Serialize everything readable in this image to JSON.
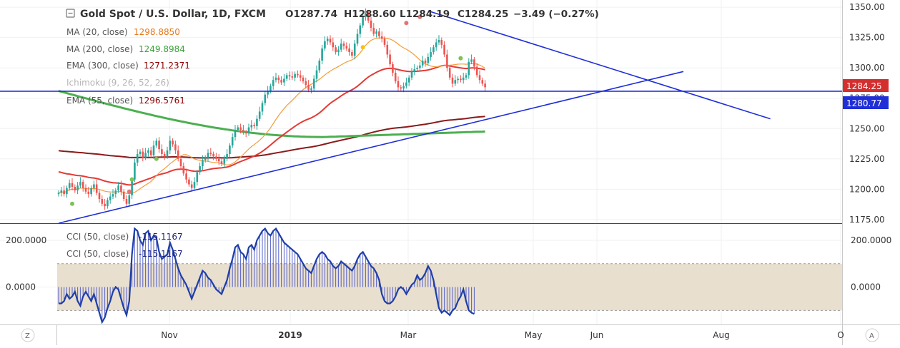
{
  "header": {
    "title": "Gold Spot / U.S. Dollar, 1D, FXCM",
    "open": "O1287.74",
    "high": "H1288.60",
    "low": "L1284.19",
    "close": "C1284.25",
    "change": "−3.49 (−0.27%)"
  },
  "legend": {
    "items": [
      {
        "label": "MA (20, close)",
        "value": "1298.8850",
        "color": "#e8791a"
      },
      {
        "label": "MA (200, close)",
        "value": "1249.8984",
        "color": "#3aa33a"
      },
      {
        "label": "EMA (300, close)",
        "value": "1271.2371",
        "color": "#8b0000"
      },
      {
        "label": "Ichimoku (9, 26, 52, 26)",
        "value": "",
        "color": "#b0b0b0"
      },
      {
        "label": "EMA (55, close)",
        "value": "1296.5761",
        "color": "#8b0000"
      }
    ],
    "cci_items": [
      {
        "label": "CCI (50, close)",
        "value": "-115.1167",
        "color": "#1a237e"
      },
      {
        "label": "CCI (50, close)",
        "value": "-115.1167",
        "color": "#1a237e"
      }
    ]
  },
  "price_labels": {
    "current": "1284.25",
    "line": "1280.77"
  },
  "bottom_bar": {
    "left_button": "Z",
    "right_button": "A"
  },
  "colors": {
    "up": "#26a69a",
    "down": "#ef5350",
    "trendline": "#1f2ed6",
    "ma20": "#f39c3a",
    "ma200": "#4caf50",
    "ema55": "#e53935",
    "ema300": "#8b1a1a",
    "cci_line": "#1e3fa8",
    "cci_band": "#e9dfcf",
    "current_price_bg": "#d32f2f",
    "line_price_bg": "#1f2ed6"
  },
  "chart_data": [
    {
      "type": "candlestick",
      "title": "Gold Spot / U.S. Dollar, 1D, FXCM",
      "xlabel": "",
      "ylabel": "",
      "x_ticks": [
        "Nov",
        "2019",
        "Mar",
        "May",
        "Jun",
        "Aug",
        "O"
      ],
      "y_ticks": [
        1175,
        1200,
        1225,
        1250,
        1275,
        1300,
        1325,
        1350
      ],
      "ylim": [
        1172,
        1353
      ],
      "series_close": [
        1197,
        1199,
        1196,
        1201,
        1205,
        1202,
        1199,
        1203,
        1206,
        1201,
        1198,
        1196,
        1201,
        1204,
        1197,
        1192,
        1188,
        1186,
        1191,
        1194,
        1196,
        1199,
        1203,
        1198,
        1192,
        1188,
        1195,
        1208,
        1222,
        1229,
        1231,
        1226,
        1230,
        1232,
        1228,
        1236,
        1240,
        1233,
        1229,
        1227,
        1232,
        1240,
        1237,
        1232,
        1225,
        1219,
        1213,
        1208,
        1204,
        1201,
        1206,
        1214,
        1219,
        1224,
        1226,
        1230,
        1229,
        1227,
        1225,
        1223,
        1221,
        1225,
        1229,
        1236,
        1243,
        1249,
        1251,
        1249,
        1247,
        1246,
        1251,
        1253,
        1252,
        1258,
        1264,
        1271,
        1278,
        1281,
        1285,
        1290,
        1292,
        1290,
        1288,
        1291,
        1294,
        1293,
        1292,
        1295,
        1294,
        1292,
        1289,
        1286,
        1282,
        1283,
        1291,
        1298,
        1306,
        1316,
        1322,
        1324,
        1321,
        1317,
        1313,
        1315,
        1320,
        1318,
        1316,
        1313,
        1310,
        1320,
        1328,
        1335,
        1342,
        1345,
        1339,
        1333,
        1328,
        1330,
        1326,
        1324,
        1319,
        1311,
        1303,
        1296,
        1289,
        1284,
        1283,
        1285,
        1288,
        1292,
        1297,
        1299,
        1300,
        1302,
        1306,
        1304,
        1309,
        1313,
        1317,
        1321,
        1323,
        1319,
        1311,
        1300,
        1292,
        1287,
        1290,
        1291,
        1290,
        1292,
        1294,
        1305,
        1307,
        1301,
        1294,
        1290,
        1287,
        1284
      ],
      "series": [
        {
          "name": "MA (20, close)",
          "last_value": 1298.885
        },
        {
          "name": "MA (200, close)",
          "last_value": 1249.8984
        },
        {
          "name": "EMA (300, close)",
          "last_value": 1271.2371
        },
        {
          "name": "EMA (55, close)",
          "last_value": 1296.5761
        }
      ],
      "trendlines": [
        {
          "from": [
            0,
            1172
          ],
          "to": [
            230,
            1297
          ]
        },
        {
          "from": [
            136,
            1347
          ],
          "to": [
            262,
            1258
          ]
        }
      ],
      "horizontal_line": 1280.77
    },
    {
      "type": "line",
      "title": "CCI (50, close)",
      "y_ticks": [
        0,
        200
      ],
      "ylim": [
        -160,
        270
      ],
      "band": [
        -100,
        100
      ],
      "last_value": -115.1167,
      "values": [
        -70,
        -70,
        -60,
        -30,
        -50,
        -40,
        -20,
        -60,
        -80,
        -40,
        -20,
        -40,
        -60,
        -30,
        -70,
        -110,
        -150,
        -130,
        -90,
        -60,
        -20,
        0,
        -10,
        -50,
        -90,
        -120,
        -60,
        140,
        250,
        240,
        200,
        180,
        230,
        240,
        200,
        220,
        210,
        150,
        120,
        130,
        140,
        190,
        160,
        120,
        80,
        50,
        30,
        10,
        -20,
        -50,
        -20,
        10,
        40,
        70,
        60,
        40,
        30,
        10,
        -10,
        -20,
        -30,
        0,
        30,
        80,
        120,
        170,
        180,
        150,
        140,
        120,
        170,
        180,
        160,
        200,
        220,
        240,
        250,
        230,
        220,
        240,
        250,
        230,
        210,
        190,
        180,
        170,
        160,
        150,
        140,
        120,
        100,
        80,
        70,
        60,
        90,
        120,
        140,
        150,
        140,
        120,
        110,
        90,
        80,
        90,
        110,
        100,
        90,
        80,
        70,
        90,
        120,
        140,
        150,
        130,
        110,
        90,
        80,
        60,
        30,
        -30,
        -60,
        -70,
        -70,
        -60,
        -40,
        -10,
        0,
        -10,
        -30,
        -10,
        10,
        20,
        50,
        30,
        40,
        60,
        90,
        70,
        30,
        -30,
        -90,
        -110,
        -100,
        -110,
        -120,
        -100,
        -90,
        -60,
        -40,
        -10,
        -60,
        -100,
        -110,
        -115
      ]
    }
  ]
}
